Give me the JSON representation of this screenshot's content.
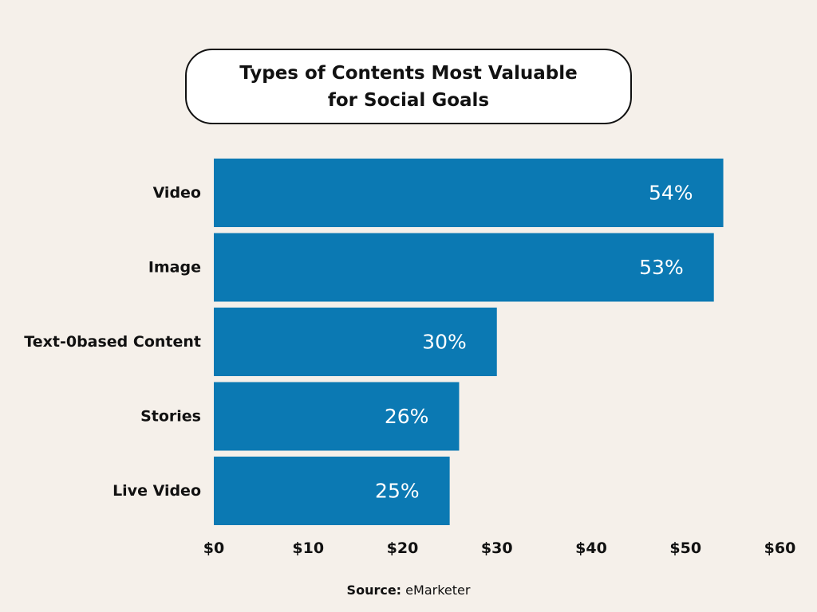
{
  "chart_data": {
    "type": "bar",
    "orientation": "horizontal",
    "title": "Types of Contents Most Valuable for Social Goals",
    "categories": [
      "Video",
      "Image",
      "Text-0based Content",
      "Stories",
      "Live Video"
    ],
    "values": [
      54,
      53,
      30,
      26,
      25
    ],
    "data_labels": [
      "54%",
      "53%",
      "30%",
      "26%",
      "25%"
    ],
    "x_ticks": [
      "$0",
      "$10",
      "$20",
      "$30",
      "$40",
      "$50",
      "$60"
    ],
    "xlim": [
      0,
      60
    ],
    "grid": false,
    "legend": "none",
    "bar_color": "#0b79b3"
  },
  "source": {
    "label": "Source:",
    "value": "eMarketer"
  }
}
